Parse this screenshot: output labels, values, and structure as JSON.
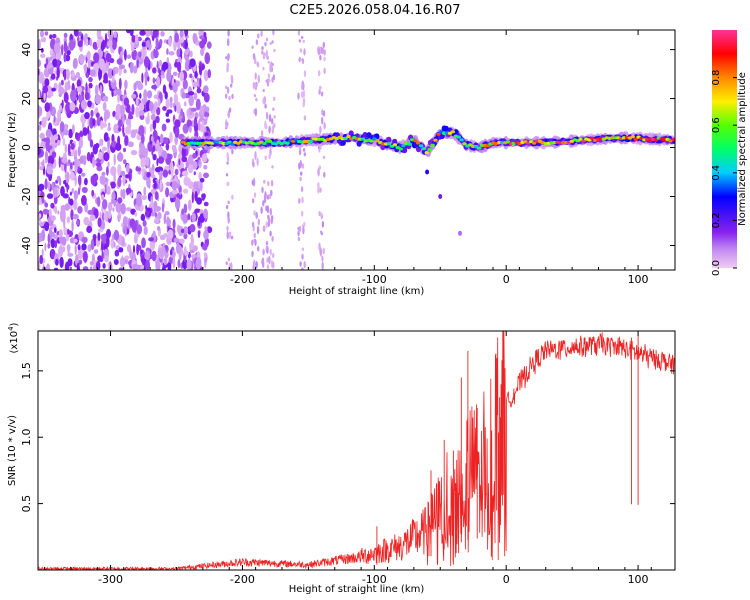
{
  "title": "C2E5.2026.058.04.16.R07",
  "chart_data": [
    {
      "type": "heatmap",
      "xlabel": "Height of straight line (km)",
      "ylabel": "Frequency (Hz)",
      "xlim": [
        -355,
        128
      ],
      "ylim": [
        -50,
        48
      ],
      "xticks": [
        -300,
        -200,
        -100,
        0,
        100
      ],
      "yticks": [
        -40,
        -20,
        0,
        20,
        40
      ],
      "colorbar": {
        "label": "Normalized spectral amplitude",
        "range": [
          0,
          1
        ],
        "ticks": [
          "0.0",
          "0.2",
          "0.4",
          "0.6",
          "0.8"
        ],
        "tick_values": [
          0.0,
          0.2,
          0.4,
          0.6,
          0.8
        ]
      },
      "noise_region": [
        -355,
        -225
      ],
      "signal_track": [
        {
          "x": -245,
          "f": 2
        },
        {
          "x": -210,
          "f": 2
        },
        {
          "x": -170,
          "f": 2
        },
        {
          "x": -150,
          "f": 3
        },
        {
          "x": -120,
          "f": 4
        },
        {
          "x": -100,
          "f": 3
        },
        {
          "x": -80,
          "f": 0
        },
        {
          "x": -70,
          "f": 3
        },
        {
          "x": -60,
          "f": -2
        },
        {
          "x": -50,
          "f": 6
        },
        {
          "x": -40,
          "f": 6
        },
        {
          "x": -30,
          "f": 1
        },
        {
          "x": -20,
          "f": 0
        },
        {
          "x": -10,
          "f": 2
        },
        {
          "x": 0,
          "f": 2
        },
        {
          "x": 30,
          "f": 2
        },
        {
          "x": 60,
          "f": 3
        },
        {
          "x": 90,
          "f": 4
        },
        {
          "x": 128,
          "f": 3
        }
      ],
      "descending_branch": [
        {
          "x": -60,
          "f": -10
        },
        {
          "x": -50,
          "f": -20
        },
        {
          "x": -35,
          "f": -35
        }
      ]
    },
    {
      "type": "line",
      "xlabel": "Height of straight line (km)",
      "ylabel": "SNR (10 * v/v)",
      "exponent_label": "(x10",
      "exponent_power": "4",
      "xlim": [
        -355,
        128
      ],
      "ylim": [
        0,
        1.8
      ],
      "xticks": [
        -300,
        -200,
        -100,
        0,
        100
      ],
      "yticks": [
        0.5,
        1.0,
        1.5
      ],
      "ytick_labels": [
        "0.5",
        "1.0",
        "1.5"
      ],
      "color": "#ee2222",
      "envelope": [
        {
          "x": -355,
          "y": 0.01
        },
        {
          "x": -250,
          "y": 0.01
        },
        {
          "x": -200,
          "y": 0.06
        },
        {
          "x": -150,
          "y": 0.04
        },
        {
          "x": -110,
          "y": 0.1
        },
        {
          "x": -80,
          "y": 0.18
        },
        {
          "x": -60,
          "y": 0.3
        },
        {
          "x": -45,
          "y": 0.55
        },
        {
          "x": -30,
          "y": 0.75
        },
        {
          "x": -20,
          "y": 0.8
        },
        {
          "x": -10,
          "y": 1.05
        },
        {
          "x": 0,
          "y": 1.25
        },
        {
          "x": 10,
          "y": 1.4
        },
        {
          "x": 20,
          "y": 1.55
        },
        {
          "x": 30,
          "y": 1.65
        },
        {
          "x": 50,
          "y": 1.68
        },
        {
          "x": 70,
          "y": 1.7
        },
        {
          "x": 90,
          "y": 1.67
        },
        {
          "x": 110,
          "y": 1.6
        },
        {
          "x": 128,
          "y": 1.55
        }
      ],
      "spikes": [
        {
          "x": -98,
          "y": 0.33
        },
        {
          "x": -57,
          "y": 0.75
        },
        {
          "x": -47,
          "y": 0.98
        },
        {
          "x": -40,
          "y": 0.9
        },
        {
          "x": -34,
          "y": 1.45
        },
        {
          "x": -29,
          "y": 1.65
        },
        {
          "x": -22,
          "y": 1.22
        },
        {
          "x": -5,
          "y": 1.3
        },
        {
          "x": 100,
          "y": 1.78
        },
        {
          "x": 95,
          "y": 1.75
        }
      ]
    }
  ]
}
